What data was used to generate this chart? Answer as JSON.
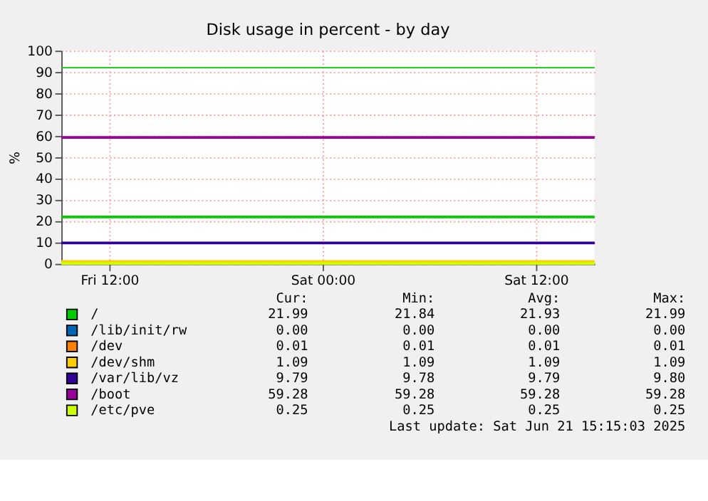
{
  "chart_data": {
    "type": "line",
    "title": "Disk usage in percent - by day",
    "ylabel": "%",
    "x": [
      "2025-06-20T09:18",
      "2025-06-21T15:18"
    ],
    "series": [
      {
        "name": "/",
        "color": "#00cc00",
        "values": [
          22,
          22
        ]
      },
      {
        "name": "/lib/init/rw",
        "color": "#0066b3",
        "values": [
          null,
          null
        ]
      },
      {
        "name": "/dev",
        "color": "#ff8000",
        "values": [
          null,
          null
        ]
      },
      {
        "name": "/dev/shm",
        "color": "#ffcc00",
        "values": [
          1.1,
          1.1
        ]
      },
      {
        "name": "/var/lib/vz",
        "color": "#330099",
        "values": [
          9.8,
          9.8
        ]
      },
      {
        "name": "/boot",
        "color": "#990099",
        "values": [
          59.3,
          59.3
        ]
      },
      {
        "name": "/etc/pve",
        "color": "#ccff00",
        "values": [
          0.2,
          0.2
        ]
      }
    ],
    "xlim": [
      "2025-06-20T09:18",
      "2025-06-21T15:18"
    ],
    "xticks": [
      {
        "value": "2025-06-20T12:00",
        "label": "Fri 12:00"
      },
      {
        "value": "2025-06-21T00:00",
        "label": "Sat 00:00"
      },
      {
        "value": "2025-06-21T12:00",
        "label": "Sat 12:00"
      }
    ],
    "ylim": [
      0,
      100
    ],
    "yticks": [
      0,
      10,
      20,
      30,
      40,
      50,
      60,
      70,
      80,
      90,
      100
    ],
    "ref_lines": [
      {
        "axis": "y",
        "value": 92,
        "color": "#00cc00"
      }
    ],
    "grid": true,
    "legend": "bottom",
    "marker": "none",
    "line_style": "solid",
    "annotations": [
      "Cur:",
      "Min:",
      "Avg:",
      "Max:",
      "21.99",
      "21.84",
      "21.93",
      "21.99",
      "0.00",
      "0.00",
      "0.00",
      "0.00",
      "0.01",
      "0.01",
      "0.01",
      "0.01",
      "1.09",
      "1.09",
      "1.09",
      "1.09",
      "9.79",
      "9.78",
      "9.79",
      "9.80",
      "59.28",
      "59.28",
      "59.28",
      "59.28",
      "0.25",
      "0.25",
      "0.25",
      "0.25",
      "Last update:  Sat Jun 21 15:15:03 2025"
    ]
  }
}
